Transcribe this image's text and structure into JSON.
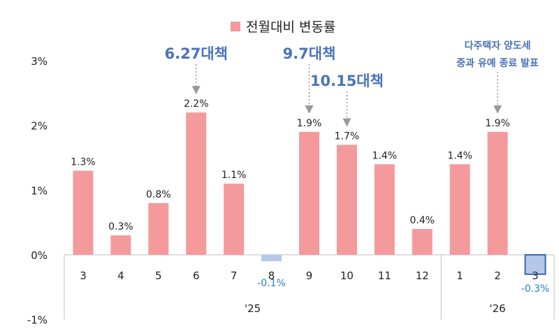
{
  "chart_data": {
    "type": "bar",
    "legend": "전월대비 변동률",
    "categories": [
      "3",
      "4",
      "5",
      "6",
      "7",
      "8",
      "9",
      "10",
      "11",
      "12",
      "1",
      "2",
      "3"
    ],
    "values": [
      1.3,
      0.3,
      0.8,
      2.2,
      1.1,
      -0.1,
      1.9,
      1.7,
      1.4,
      0.4,
      1.4,
      1.9,
      -0.3
    ],
    "value_labels": [
      "1.3%",
      "0.3%",
      "0.8%",
      "2.2%",
      "1.1%",
      "-0.1%",
      "1.9%",
      "1.7%",
      "1.4%",
      "0.4%",
      "1.4%",
      "1.9%",
      "-0.3%"
    ],
    "years": [
      {
        "label": "'25",
        "from": 0,
        "to": 9
      },
      {
        "label": "'26",
        "from": 10,
        "to": 12
      }
    ],
    "yticks": [
      "3%",
      "2%",
      "1%",
      "0%",
      "-1%"
    ],
    "ytick_values": [
      3,
      2,
      1,
      0,
      -1
    ],
    "ylim": [
      -1,
      3
    ],
    "annotations": [
      {
        "text": "6.27대책",
        "target": 3
      },
      {
        "text": "9.7대책",
        "target": 6
      },
      {
        "text": "10.15대책",
        "target": 7
      },
      {
        "line1": "다주택자 양도세",
        "line2": "중과 유예 종료 발표",
        "target": 11
      }
    ],
    "colors": {
      "positive": "#f49a9c",
      "negative": "#b5c8e8",
      "negative_outline": "#3b66b5",
      "annotation": "#4a73b8",
      "negative_label": "#2a7fc1"
    }
  }
}
